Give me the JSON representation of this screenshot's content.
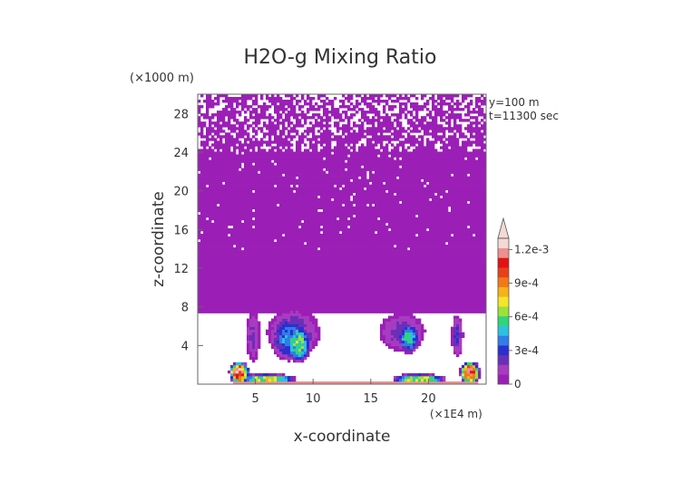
{
  "chart_data": {
    "type": "heatmap",
    "title": "H2O-g Mixing Ratio",
    "xlabel": "x-coordinate",
    "ylabel": "z-coordinate",
    "x_unit": "(×1E4 m)",
    "y_unit": "(×1000 m)",
    "xlim": [
      0,
      25
    ],
    "ylim": [
      0,
      30
    ],
    "x_ticks": [
      5,
      10,
      15,
      20
    ],
    "y_ticks": [
      4,
      8,
      12,
      16,
      20,
      24,
      28
    ],
    "annotations": [
      "y=100 m",
      "t=11300 sec"
    ],
    "colorbar": {
      "labels": [
        "1.2e-3",
        "9e-4",
        "6e-4",
        "3e-4",
        "0"
      ],
      "label_values": [
        0.0012,
        0.0009,
        0.0006,
        0.0003,
        0
      ],
      "range": [
        0,
        0.0013
      ],
      "colors": [
        "#9b1fb6",
        "#a83bc0",
        "#6a2fb8",
        "#2a2fd0",
        "#2f7de8",
        "#2dc0e0",
        "#2fd57a",
        "#9ae23a",
        "#f4e62a",
        "#f6b21a",
        "#f27a16",
        "#e8401a",
        "#e21212",
        "#ef8f8f",
        "#f6d9d4"
      ],
      "extend": "max"
    },
    "background_field": {
      "vapor_layer_z_range": [
        7.5,
        30
      ],
      "vapor_layer_value": 2e-05,
      "blobs": [
        {
          "x": 8.7,
          "z": 4.2,
          "rx": 1.2,
          "rz": 2.0,
          "value": 0.0006
        },
        {
          "x": 7.9,
          "z": 4.8,
          "rx": 1.6,
          "rz": 2.4,
          "value": 0.0004
        },
        {
          "x": 8.3,
          "z": 5.3,
          "rx": 2.3,
          "rz": 2.6,
          "value": 0.00024
        },
        {
          "x": 18.3,
          "z": 4.8,
          "rx": 1.0,
          "rz": 1.6,
          "value": 0.0005
        },
        {
          "x": 17.7,
          "z": 5.4,
          "rx": 2.0,
          "rz": 2.0,
          "value": 0.0002
        },
        {
          "x": 22.5,
          "z": 5.0,
          "rx": 0.5,
          "rz": 2.2,
          "value": 0.00025
        },
        {
          "x": 4.8,
          "z": 5.0,
          "rx": 0.6,
          "rz": 2.6,
          "value": 0.00018
        },
        {
          "x": 6.0,
          "z": 0.55,
          "rx": 2.6,
          "rz": 0.55,
          "value": 0.0007
        },
        {
          "x": 19.2,
          "z": 0.55,
          "rx": 2.4,
          "rz": 0.55,
          "value": 0.0007
        },
        {
          "x": 3.6,
          "z": 1.2,
          "rx": 0.9,
          "rz": 1.2,
          "value": 0.0012
        },
        {
          "x": 23.6,
          "z": 1.2,
          "rx": 0.9,
          "rz": 1.2,
          "value": 0.0012
        }
      ],
      "surface_band_value": 0.0012,
      "surface_band_height": 0.35
    }
  }
}
